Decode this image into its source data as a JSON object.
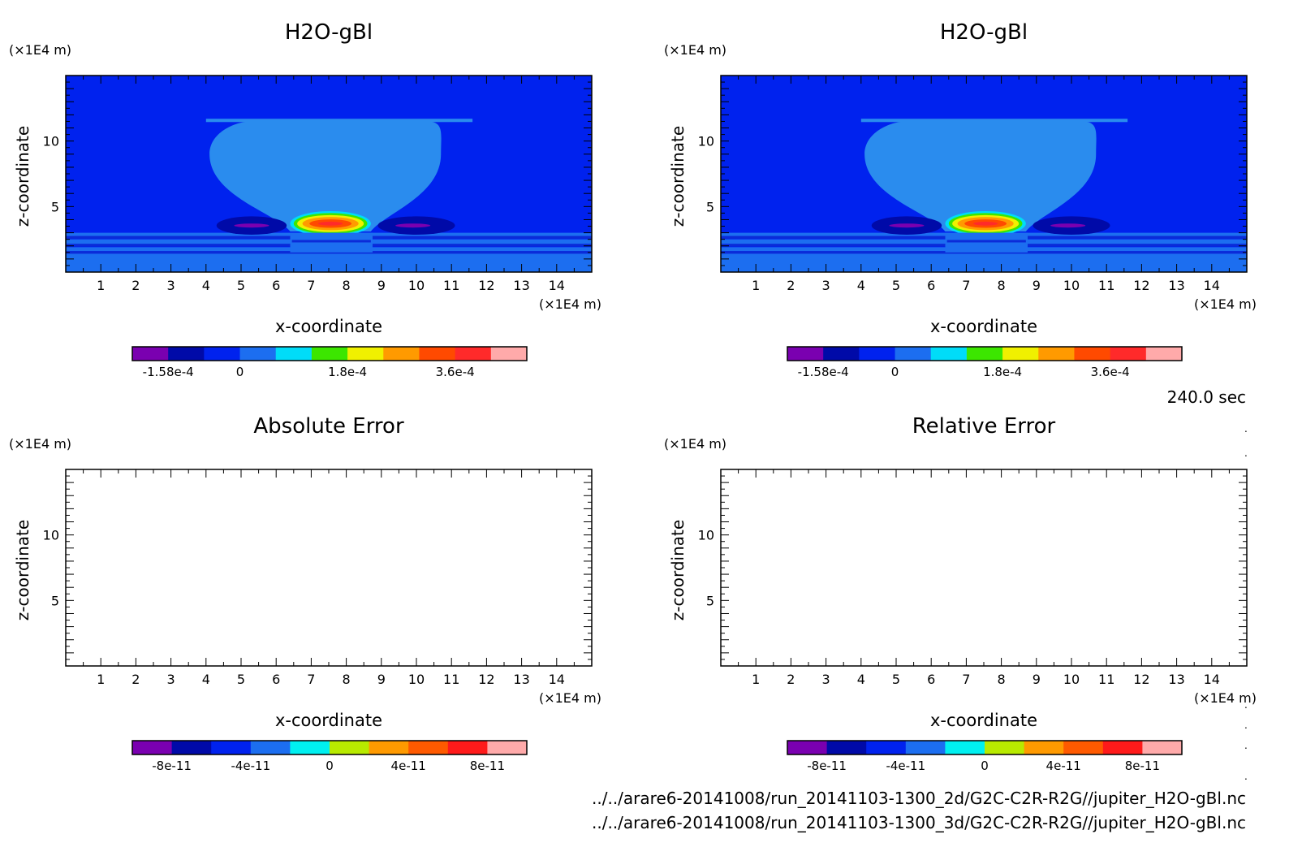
{
  "time_label": "240.0 sec",
  "file_paths": [
    "../../arare6-20141008/run_20141103-1300_2d/G2C-C2R-R2G//jupiter_H2O-gBl.nc",
    "../../arare6-20141008/run_20141103-1300_3d/G2C-C2R-R2G//jupiter_H2O-gBl.nc"
  ],
  "colors": {
    "background": "#0022ee",
    "plume": "#2a8cee",
    "stripe_light": "#1c6ef0",
    "stripe_dark": "#0b2bd8"
  },
  "chart_data": [
    {
      "type": "heatmap",
      "title": "H2O-gBl",
      "xlabel": "x-coordinate",
      "ylabel": "z-coordinate",
      "x_unit": "(×1E4 m)",
      "y_unit": "(×1E4 m)",
      "xlim": [
        0,
        15
      ],
      "ylim": [
        0,
        15
      ],
      "x_ticks": [
        "1",
        "2",
        "3",
        "4",
        "5",
        "6",
        "7",
        "8",
        "9",
        "10",
        "11",
        "12",
        "13",
        "14"
      ],
      "y_ticks": [
        "5",
        "10"
      ],
      "has_field": true,
      "colorbar": {
        "colors": [
          "#7a00b0",
          "#000aa8",
          "#0022ee",
          "#1c6ef0",
          "#00dcf8",
          "#3ce600",
          "#f0f000",
          "#ff9a00",
          "#ff4a00",
          "#ff2a2a",
          "#ffaaaa"
        ],
        "tick_labels": [
          "-1.58e-4",
          "0",
          "1.8e-4",
          "3.6e-4"
        ]
      }
    },
    {
      "type": "heatmap",
      "title": "H2O-gBl",
      "xlabel": "x-coordinate",
      "ylabel": "z-coordinate",
      "x_unit": "(×1E4 m)",
      "y_unit": "(×1E4 m)",
      "xlim": [
        0,
        15
      ],
      "ylim": [
        0,
        15
      ],
      "x_ticks": [
        "1",
        "2",
        "3",
        "4",
        "5",
        "6",
        "7",
        "8",
        "9",
        "10",
        "11",
        "12",
        "13",
        "14"
      ],
      "y_ticks": [
        "5",
        "10"
      ],
      "has_field": true,
      "colorbar": {
        "colors": [
          "#7a00b0",
          "#000aa8",
          "#0022ee",
          "#1c6ef0",
          "#00dcf8",
          "#3ce600",
          "#f0f000",
          "#ff9a00",
          "#ff4a00",
          "#ff2a2a",
          "#ffaaaa"
        ],
        "tick_labels": [
          "-1.58e-4",
          "0",
          "1.8e-4",
          "3.6e-4"
        ]
      }
    },
    {
      "type": "heatmap",
      "title": "Absolute Error",
      "xlabel": "x-coordinate",
      "ylabel": "z-coordinate",
      "x_unit": "(×1E4 m)",
      "y_unit": "(×1E4 m)",
      "xlim": [
        0,
        15
      ],
      "ylim": [
        0,
        15
      ],
      "x_ticks": [
        "1",
        "2",
        "3",
        "4",
        "5",
        "6",
        "7",
        "8",
        "9",
        "10",
        "11",
        "12",
        "13",
        "14"
      ],
      "y_ticks": [
        "5",
        "10"
      ],
      "has_field": false,
      "colorbar": {
        "colors": [
          "#7a00b0",
          "#000aa8",
          "#0022ee",
          "#1c6ef0",
          "#00f0f0",
          "#b8ea00",
          "#ff9a00",
          "#ff5a00",
          "#ff1a1a",
          "#ffaaaa"
        ],
        "tick_labels": [
          "-8e-11",
          "-4e-11",
          "0",
          "4e-11",
          "8e-11"
        ]
      }
    },
    {
      "type": "heatmap",
      "title": "Relative Error",
      "xlabel": "x-coordinate",
      "ylabel": "z-coordinate",
      "x_unit": "(×1E4 m)",
      "y_unit": "(×1E4 m)",
      "xlim": [
        0,
        15
      ],
      "ylim": [
        0,
        15
      ],
      "x_ticks": [
        "1",
        "2",
        "3",
        "4",
        "5",
        "6",
        "7",
        "8",
        "9",
        "10",
        "11",
        "12",
        "13",
        "14"
      ],
      "y_ticks": [
        "5",
        "10"
      ],
      "has_field": false,
      "colorbar": {
        "colors": [
          "#7a00b0",
          "#000aa8",
          "#0022ee",
          "#1c6ef0",
          "#00f0f0",
          "#b8ea00",
          "#ff9a00",
          "#ff5a00",
          "#ff1a1a",
          "#ffaaaa"
        ],
        "tick_labels": [
          "-8e-11",
          "-4e-11",
          "0",
          "4e-11",
          "8e-11"
        ]
      }
    }
  ]
}
